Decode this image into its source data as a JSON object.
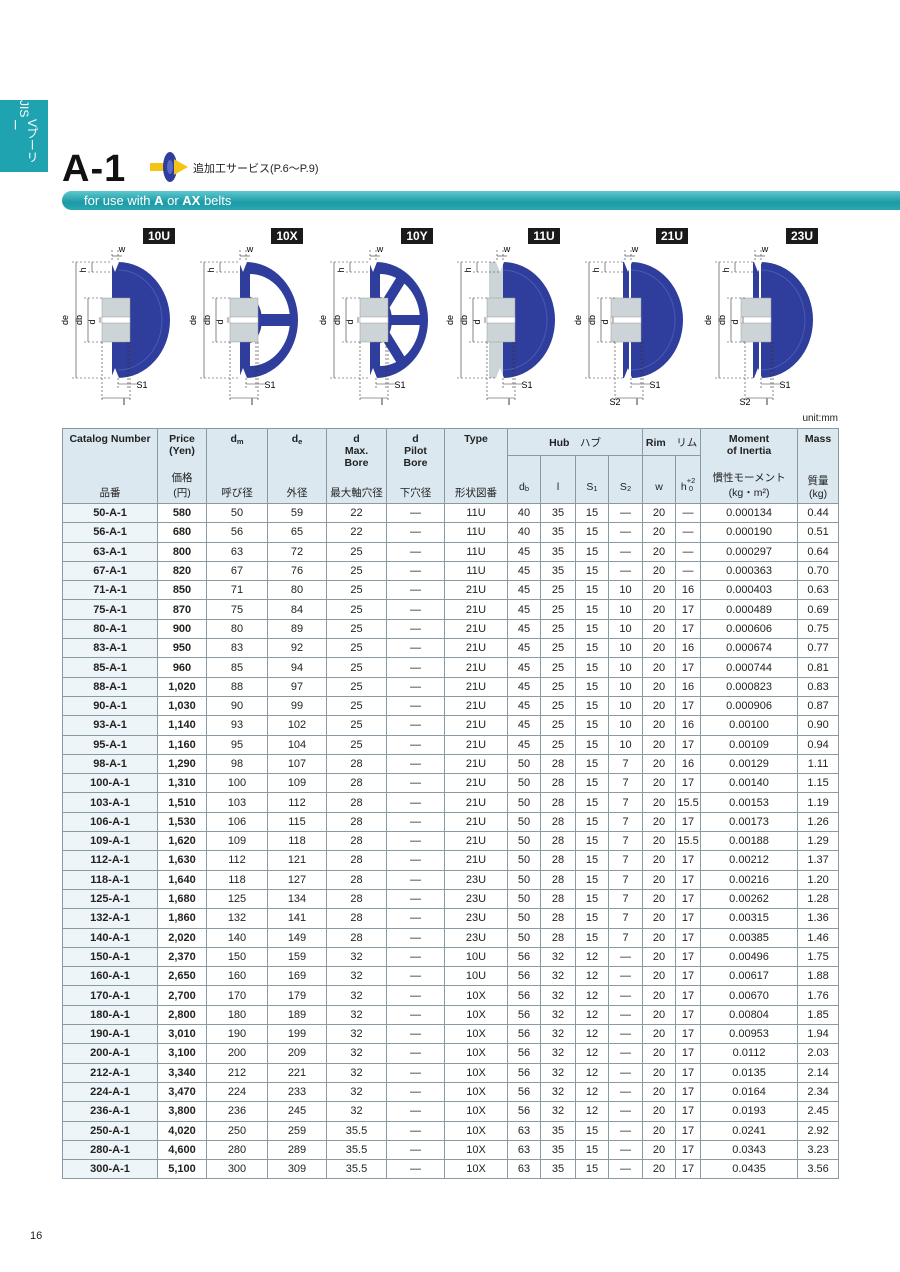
{
  "side_tab": {
    "lines": [
      "JIS",
      "Vプーリー"
    ]
  },
  "header": {
    "title": "A-1",
    "service": "追加工サービス(P.6〜P.9)",
    "subtitle": [
      "for use with ",
      "A",
      " or ",
      "AX",
      " belts"
    ]
  },
  "diagrams": [
    {
      "type": "10U",
      "labels": [
        "w",
        "h",
        "de",
        "db",
        "d",
        "S1",
        "l"
      ]
    },
    {
      "type": "10X",
      "labels": [
        "w",
        "h",
        "de",
        "db",
        "d",
        "S1",
        "l"
      ]
    },
    {
      "type": "10Y",
      "labels": [
        "w",
        "h",
        "de",
        "db",
        "d",
        "S1",
        "l"
      ]
    },
    {
      "type": "11U",
      "labels": [
        "w",
        "h",
        "de",
        "db",
        "d",
        "S1",
        "l"
      ]
    },
    {
      "type": "21U",
      "labels": [
        "w",
        "h",
        "de",
        "db",
        "d",
        "S1",
        "l",
        "S2"
      ]
    },
    {
      "type": "23U",
      "labels": [
        "w",
        "h",
        "de",
        "db",
        "d",
        "S1",
        "l",
        "S2"
      ]
    }
  ],
  "unit": "unit:mm",
  "table": {
    "columns": [
      {
        "en": [
          "Catalog Number"
        ],
        "ja": [
          "品番"
        ]
      },
      {
        "en": [
          "Price",
          "(Yen)"
        ],
        "ja": [
          "価格",
          "(円)"
        ]
      },
      {
        "symbol": "d",
        "sub": "m",
        "ja": [
          "呼び径"
        ]
      },
      {
        "symbol": "d",
        "sub": "e",
        "ja": [
          "外径"
        ]
      },
      {
        "en": [
          "d",
          "Max.",
          "Bore"
        ],
        "ja": [
          "最大軸穴径"
        ]
      },
      {
        "en": [
          "d",
          "Pilot",
          "Bore"
        ],
        "ja": [
          "下穴径"
        ]
      },
      {
        "en": [
          "Type"
        ],
        "ja": [
          "形状図番"
        ]
      }
    ],
    "hub": {
      "en": "Hub",
      "ja": "ハブ",
      "subcolumns": [
        {
          "symbol": "d",
          "sub": "b"
        },
        {
          "symbol": "l"
        },
        {
          "symbol": "S",
          "sub": "1"
        },
        {
          "symbol": "S",
          "sub": "2"
        }
      ]
    },
    "rim": {
      "en": "Rim",
      "ja": "リム",
      "subcolumns": [
        {
          "symbol": "w"
        },
        {
          "symbol": "h",
          "sup": "+2",
          "sub": "0"
        }
      ]
    },
    "moment": {
      "en": [
        "Moment",
        "of Inertia"
      ],
      "ja": [
        "慣性モーメント",
        "(kg・m²)"
      ]
    },
    "mass": {
      "en": [
        "Mass"
      ],
      "ja": [
        "質量",
        "(kg)"
      ]
    },
    "rows": [
      [
        "50-A-1",
        "580",
        "50",
        "59",
        "22",
        "—",
        "11U",
        "40",
        "35",
        "15",
        "—",
        "20",
        "—",
        "0.000134",
        "0.44"
      ],
      [
        "56-A-1",
        "680",
        "56",
        "65",
        "22",
        "—",
        "11U",
        "40",
        "35",
        "15",
        "—",
        "20",
        "—",
        "0.000190",
        "0.51"
      ],
      [
        "63-A-1",
        "800",
        "63",
        "72",
        "25",
        "—",
        "11U",
        "45",
        "35",
        "15",
        "—",
        "20",
        "—",
        "0.000297",
        "0.64"
      ],
      [
        "67-A-1",
        "820",
        "67",
        "76",
        "25",
        "—",
        "11U",
        "45",
        "35",
        "15",
        "—",
        "20",
        "—",
        "0.000363",
        "0.70"
      ],
      [
        "71-A-1",
        "850",
        "71",
        "80",
        "25",
        "—",
        "21U",
        "45",
        "25",
        "15",
        "10",
        "20",
        "16",
        "0.000403",
        "0.63"
      ],
      [
        "75-A-1",
        "870",
        "75",
        "84",
        "25",
        "—",
        "21U",
        "45",
        "25",
        "15",
        "10",
        "20",
        "17",
        "0.000489",
        "0.69"
      ],
      [
        "80-A-1",
        "900",
        "80",
        "89",
        "25",
        "—",
        "21U",
        "45",
        "25",
        "15",
        "10",
        "20",
        "17",
        "0.000606",
        "0.75"
      ],
      [
        "83-A-1",
        "950",
        "83",
        "92",
        "25",
        "—",
        "21U",
        "45",
        "25",
        "15",
        "10",
        "20",
        "16",
        "0.000674",
        "0.77"
      ],
      [
        "85-A-1",
        "960",
        "85",
        "94",
        "25",
        "—",
        "21U",
        "45",
        "25",
        "15",
        "10",
        "20",
        "17",
        "0.000744",
        "0.81"
      ],
      [
        "88-A-1",
        "1,020",
        "88",
        "97",
        "25",
        "—",
        "21U",
        "45",
        "25",
        "15",
        "10",
        "20",
        "16",
        "0.000823",
        "0.83"
      ],
      [
        "90-A-1",
        "1,030",
        "90",
        "99",
        "25",
        "—",
        "21U",
        "45",
        "25",
        "15",
        "10",
        "20",
        "17",
        "0.000906",
        "0.87"
      ],
      [
        "93-A-1",
        "1,140",
        "93",
        "102",
        "25",
        "—",
        "21U",
        "45",
        "25",
        "15",
        "10",
        "20",
        "16",
        "0.00100",
        "0.90"
      ],
      [
        "95-A-1",
        "1,160",
        "95",
        "104",
        "25",
        "—",
        "21U",
        "45",
        "25",
        "15",
        "10",
        "20",
        "17",
        "0.00109",
        "0.94"
      ],
      [
        "98-A-1",
        "1,290",
        "98",
        "107",
        "28",
        "—",
        "21U",
        "50",
        "28",
        "15",
        "7",
        "20",
        "16",
        "0.00129",
        "1.11"
      ],
      [
        "100-A-1",
        "1,310",
        "100",
        "109",
        "28",
        "—",
        "21U",
        "50",
        "28",
        "15",
        "7",
        "20",
        "17",
        "0.00140",
        "1.15"
      ],
      [
        "103-A-1",
        "1,510",
        "103",
        "112",
        "28",
        "—",
        "21U",
        "50",
        "28",
        "15",
        "7",
        "20",
        "15.5",
        "0.00153",
        "1.19"
      ],
      [
        "106-A-1",
        "1,530",
        "106",
        "115",
        "28",
        "—",
        "21U",
        "50",
        "28",
        "15",
        "7",
        "20",
        "17",
        "0.00173",
        "1.26"
      ],
      [
        "109-A-1",
        "1,620",
        "109",
        "118",
        "28",
        "—",
        "21U",
        "50",
        "28",
        "15",
        "7",
        "20",
        "15.5",
        "0.00188",
        "1.29"
      ],
      [
        "112-A-1",
        "1,630",
        "112",
        "121",
        "28",
        "—",
        "21U",
        "50",
        "28",
        "15",
        "7",
        "20",
        "17",
        "0.00212",
        "1.37"
      ],
      [
        "118-A-1",
        "1,640",
        "118",
        "127",
        "28",
        "—",
        "23U",
        "50",
        "28",
        "15",
        "7",
        "20",
        "17",
        "0.00216",
        "1.20"
      ],
      [
        "125-A-1",
        "1,680",
        "125",
        "134",
        "28",
        "—",
        "23U",
        "50",
        "28",
        "15",
        "7",
        "20",
        "17",
        "0.00262",
        "1.28"
      ],
      [
        "132-A-1",
        "1,860",
        "132",
        "141",
        "28",
        "—",
        "23U",
        "50",
        "28",
        "15",
        "7",
        "20",
        "17",
        "0.00315",
        "1.36"
      ],
      [
        "140-A-1",
        "2,020",
        "140",
        "149",
        "28",
        "—",
        "23U",
        "50",
        "28",
        "15",
        "7",
        "20",
        "17",
        "0.00385",
        "1.46"
      ],
      [
        "150-A-1",
        "2,370",
        "150",
        "159",
        "32",
        "—",
        "10U",
        "56",
        "32",
        "12",
        "—",
        "20",
        "17",
        "0.00496",
        "1.75"
      ],
      [
        "160-A-1",
        "2,650",
        "160",
        "169",
        "32",
        "—",
        "10U",
        "56",
        "32",
        "12",
        "—",
        "20",
        "17",
        "0.00617",
        "1.88"
      ],
      [
        "170-A-1",
        "2,700",
        "170",
        "179",
        "32",
        "—",
        "10X",
        "56",
        "32",
        "12",
        "—",
        "20",
        "17",
        "0.00670",
        "1.76"
      ],
      [
        "180-A-1",
        "2,800",
        "180",
        "189",
        "32",
        "—",
        "10X",
        "56",
        "32",
        "12",
        "—",
        "20",
        "17",
        "0.00804",
        "1.85"
      ],
      [
        "190-A-1",
        "3,010",
        "190",
        "199",
        "32",
        "—",
        "10X",
        "56",
        "32",
        "12",
        "—",
        "20",
        "17",
        "0.00953",
        "1.94"
      ],
      [
        "200-A-1",
        "3,100",
        "200",
        "209",
        "32",
        "—",
        "10X",
        "56",
        "32",
        "12",
        "—",
        "20",
        "17",
        "0.0112",
        "2.03"
      ],
      [
        "212-A-1",
        "3,340",
        "212",
        "221",
        "32",
        "—",
        "10X",
        "56",
        "32",
        "12",
        "—",
        "20",
        "17",
        "0.0135",
        "2.14"
      ],
      [
        "224-A-1",
        "3,470",
        "224",
        "233",
        "32",
        "—",
        "10X",
        "56",
        "32",
        "12",
        "—",
        "20",
        "17",
        "0.0164",
        "2.34"
      ],
      [
        "236-A-1",
        "3,800",
        "236",
        "245",
        "32",
        "—",
        "10X",
        "56",
        "32",
        "12",
        "—",
        "20",
        "17",
        "0.0193",
        "2.45"
      ],
      [
        "250-A-1",
        "4,020",
        "250",
        "259",
        "35.5",
        "—",
        "10X",
        "63",
        "35",
        "15",
        "—",
        "20",
        "17",
        "0.0241",
        "2.92"
      ],
      [
        "280-A-1",
        "4,600",
        "280",
        "289",
        "35.5",
        "—",
        "10X",
        "63",
        "35",
        "15",
        "—",
        "20",
        "17",
        "0.0343",
        "3.23"
      ],
      [
        "300-A-1",
        "5,100",
        "300",
        "309",
        "35.5",
        "—",
        "10X",
        "63",
        "35",
        "15",
        "—",
        "20",
        "17",
        "0.0435",
        "3.56"
      ]
    ]
  },
  "page_number": "16"
}
